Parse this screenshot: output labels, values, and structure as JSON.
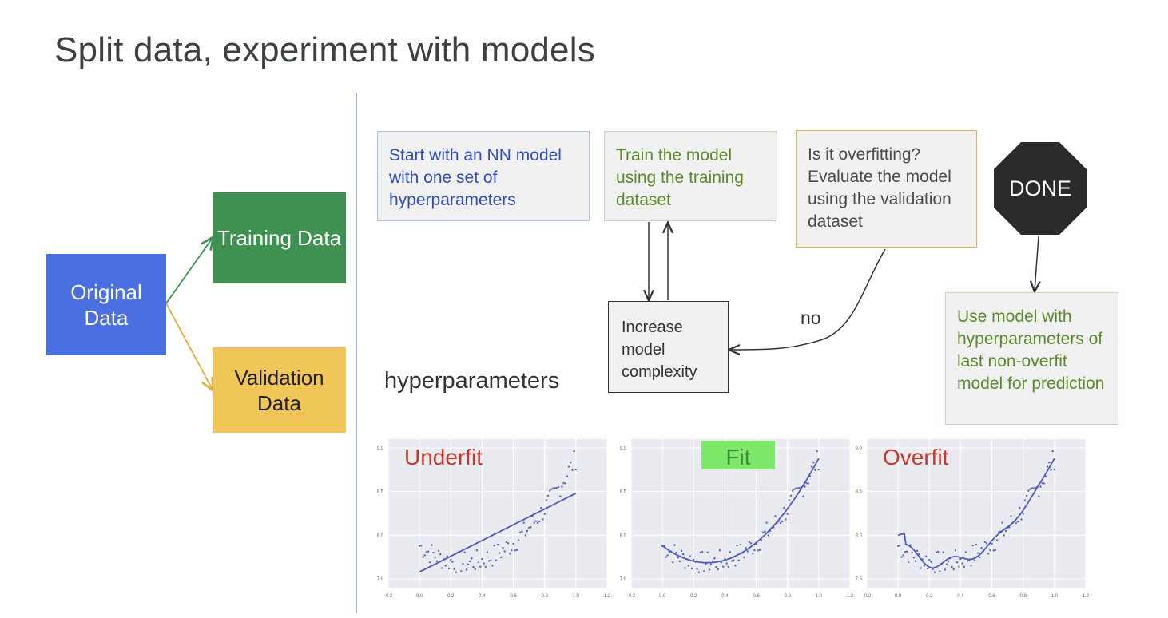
{
  "title": "Split data, experiment with models",
  "split": {
    "original": "Original Data",
    "training": "Training Data",
    "validation": "Validation Data"
  },
  "flow": {
    "start": "Start with an NN model with one set of hyperparameters",
    "train": "Train the model using the training dataset",
    "evaluate": "Is it overfitting? Evaluate the model using the validation dataset",
    "done": "DONE",
    "increase": "Increase model complexity",
    "no_label": "no",
    "use_model": "Use model with hyperparameters of last non-overfit model for prediction",
    "hyperparameters_label": "hyperparameters"
  },
  "colors": {
    "original": "#4a6fe0",
    "training": "#3e9150",
    "validation": "#f0c659",
    "stop_sign": "#2b2b2b",
    "underfit": "#c0392b",
    "fit_highlight": "#7ee86a",
    "curve": "#4a5bb8"
  },
  "chart_data": [
    {
      "type": "scatter",
      "title": "Underfit",
      "xlim": [
        -0.2,
        1.2
      ],
      "ylim": [
        7.4,
        9.1
      ],
      "xticks": [
        "-0.2",
        "0.0",
        "0.2",
        "0.4",
        "0.6",
        "0.8",
        "1.0",
        "1.2"
      ],
      "yticks": [
        "7.5",
        "8.0",
        "8.5",
        "9.0"
      ],
      "fit": "linear",
      "fit_line": [
        [
          0.0,
          7.58
        ],
        [
          1.0,
          8.48
        ]
      ]
    },
    {
      "type": "scatter",
      "title": "Fit",
      "xlim": [
        -0.2,
        1.2
      ],
      "ylim": [
        7.4,
        9.1
      ],
      "xticks": [
        "-0.2",
        "0.0",
        "0.2",
        "0.4",
        "0.6",
        "0.8",
        "1.0",
        "1.2"
      ],
      "yticks": [
        "7.5",
        "8.0",
        "8.5",
        "9.0"
      ],
      "fit": "quadratic"
    },
    {
      "type": "scatter",
      "title": "Overfit",
      "xlim": [
        -0.2,
        1.2
      ],
      "ylim": [
        7.4,
        9.1
      ],
      "xticks": [
        "-0.2",
        "0.0",
        "0.2",
        "0.4",
        "0.6",
        "0.8",
        "1.0",
        "1.2"
      ],
      "yticks": [
        "7.5",
        "8.0",
        "8.5",
        "9.0"
      ],
      "fit": "wiggly"
    }
  ]
}
